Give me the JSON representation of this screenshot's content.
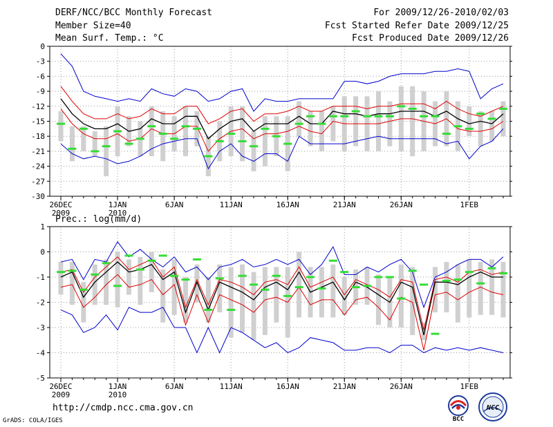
{
  "header": {
    "title": "DERF/NCC/BCC Monthly Forecast",
    "member_size": "Member Size=40",
    "variable": "Mean Surf. Temp.: °C",
    "period": "For 2009/12/26-2010/02/03",
    "started": "Fcst Started Refer Date 2009/12/25",
    "produced": "Fcst Produced Date 2009/12/26"
  },
  "footer": {
    "url": "http://cmdp.ncc.cma.gov.cn",
    "credit": "GrADS: COLA/IGES",
    "logo_bcc": "BCC",
    "logo_ncc": "NCC"
  },
  "colors": {
    "max_min": "#0000cc",
    "spread": "#dd0000",
    "mean": "#000000",
    "box": "#d0d0d0",
    "observed": "#33dd33",
    "grid": "#999999"
  },
  "chart_data": [
    {
      "type": "line",
      "title": "Mean Surf. Temp.: °C",
      "ylabel": "°C",
      "ylim": [
        -30,
        0
      ],
      "yticks": [
        0,
        -3,
        -6,
        -9,
        -12,
        -15,
        -18,
        -21,
        -24,
        -27,
        -30
      ],
      "xlim": [
        0,
        40
      ],
      "xticks": [
        {
          "day": 1,
          "label": "26DEC",
          "sub": "2009"
        },
        {
          "day": 6,
          "label": "1JAN",
          "sub": "2010"
        },
        {
          "day": 11,
          "label": "6JAN",
          "sub": ""
        },
        {
          "day": 16,
          "label": "11JAN",
          "sub": ""
        },
        {
          "day": 21,
          "label": "16JAN",
          "sub": ""
        },
        {
          "day": 26,
          "label": "21JAN",
          "sub": ""
        },
        {
          "day": 31,
          "label": "26JAN",
          "sub": ""
        },
        {
          "day": 37,
          "label": "1FEB",
          "sub": ""
        }
      ],
      "x": [
        1,
        2,
        3,
        4,
        5,
        6,
        7,
        8,
        9,
        10,
        11,
        12,
        13,
        14,
        15,
        16,
        17,
        18,
        19,
        20,
        21,
        22,
        23,
        24,
        25,
        26,
        27,
        28,
        29,
        30,
        31,
        32,
        33,
        34,
        35,
        36,
        37,
        38,
        39,
        40
      ],
      "series": [
        {
          "name": "max",
          "values": [
            -1.5,
            -4,
            -9,
            -10,
            -10.5,
            -11,
            -10.5,
            -11,
            -8.5,
            -9.5,
            -10,
            -8.5,
            -9,
            -11,
            -10.5,
            -9,
            -8.5,
            -13,
            -10.5,
            -11,
            -11,
            -10.5,
            -10.5,
            -10.5,
            -10.5,
            -7,
            -7,
            -7.5,
            -7,
            -6,
            -5.5,
            -5.5,
            -5.5,
            -5,
            -5,
            -4.5,
            -5,
            -10.5,
            -8.5,
            -7.5
          ]
        },
        {
          "name": "upper",
          "values": [
            -8,
            -11,
            -13.5,
            -14.5,
            -14.5,
            -13.5,
            -14.5,
            -14,
            -12.5,
            -13.5,
            -13.5,
            -12,
            -12,
            -15.5,
            -14.5,
            -13,
            -12.5,
            -15,
            -13.5,
            -13.5,
            -13,
            -12,
            -13,
            -13,
            -12,
            -12,
            -12,
            -12.5,
            -12,
            -12,
            -11.5,
            -11.5,
            -11.5,
            -12.5,
            -11,
            -12.5,
            -13.5,
            -14,
            -13,
            -12
          ]
        },
        {
          "name": "mean",
          "values": [
            -10.5,
            -13.5,
            -15.5,
            -16.5,
            -16.5,
            -15.5,
            -17,
            -16.5,
            -14.5,
            -15.5,
            -15.5,
            -14,
            -14,
            -18.5,
            -16.5,
            -15,
            -14.5,
            -17,
            -15.5,
            -15.5,
            -15.5,
            -14,
            -15.5,
            -15.5,
            -13,
            -13.5,
            -13.5,
            -14,
            -13.5,
            -13.5,
            -13,
            -13,
            -13,
            -14,
            -13,
            -14.5,
            -15.5,
            -15,
            -15.5,
            -13.5
          ]
        },
        {
          "name": "lower",
          "values": [
            -12.5,
            -15.5,
            -17.5,
            -18.5,
            -18.5,
            -17.5,
            -19,
            -18.5,
            -16.5,
            -17.5,
            -17.5,
            -16,
            -16,
            -21,
            -18.5,
            -17,
            -16.5,
            -18.5,
            -17.5,
            -17.5,
            -17,
            -16,
            -17,
            -17.5,
            -15,
            -15.5,
            -15.5,
            -15.5,
            -15.5,
            -15,
            -14.5,
            -14.5,
            -15,
            -15.5,
            -14.5,
            -16.5,
            -17,
            -17,
            -16.5,
            -15
          ]
        },
        {
          "name": "min",
          "values": [
            -19.5,
            -21.5,
            -22.5,
            -22,
            -22.5,
            -23.5,
            -23,
            -22,
            -20.5,
            -19.5,
            -19,
            -18.5,
            -18.5,
            -24.5,
            -21,
            -19.5,
            -22,
            -23,
            -21.5,
            -21.5,
            -23,
            -18,
            -19.5,
            -19.5,
            -19.5,
            -19.5,
            -19,
            -18.5,
            -18,
            -18.5,
            -18.5,
            -18.5,
            -18.5,
            -18.5,
            -19.5,
            -19,
            -22.5,
            -20,
            -19,
            -16.5
          ]
        },
        {
          "name": "box_top",
          "values": [
            -13,
            -16,
            -16,
            -17,
            -16,
            -12,
            -14,
            -15,
            -12,
            -13,
            -14,
            -12,
            -13,
            -18,
            -15,
            -12,
            -12,
            -17,
            -14,
            -14,
            -14,
            -11,
            -13,
            -13,
            -12,
            -10,
            -10,
            -10,
            -9,
            -11,
            -8,
            -8,
            -9,
            -11,
            -9,
            -11,
            -12,
            -13,
            -13,
            -11
          ]
        },
        {
          "name": "box_bottom",
          "values": [
            -19,
            -23,
            -21,
            -22,
            -26,
            -22,
            -20,
            -22,
            -22,
            -23,
            -21,
            -22,
            -20,
            -26,
            -23,
            -22,
            -23,
            -25,
            -24,
            -22,
            -25,
            -18,
            -20,
            -21,
            -19,
            -21,
            -20,
            -21,
            -21,
            -20,
            -21,
            -22,
            -21,
            -20,
            -20,
            -21,
            -18,
            -20,
            -19,
            -18
          ]
        },
        {
          "name": "observed",
          "values": [
            -15.5,
            -20.5,
            -16.5,
            -21,
            -20,
            -17,
            -19.5,
            -18.5,
            -16,
            -17.5,
            -18.5,
            -16,
            -16.5,
            -22,
            -19,
            -17.5,
            -19,
            -20,
            -16.5,
            -18,
            -19.5,
            -15.5,
            -14,
            -15.5,
            -14,
            -14,
            -13,
            -14,
            -14,
            -14,
            -12,
            -12.5,
            -14,
            -14,
            -17.5,
            -16,
            -16.5,
            -13.5,
            -14.5,
            -12.5
          ]
        }
      ]
    },
    {
      "type": "line",
      "title": "Prec.: log(mm/d)",
      "ylabel": "log(mm/d)",
      "ylim": [
        -5,
        1
      ],
      "yticks": [
        1,
        0,
        -1,
        -2,
        -3,
        -4,
        -5
      ],
      "xlim": [
        0,
        40
      ],
      "xticks": [
        {
          "day": 1,
          "label": "26DEC",
          "sub": "2009"
        },
        {
          "day": 6,
          "label": "1JAN",
          "sub": "2010"
        },
        {
          "day": 11,
          "label": "6JAN",
          "sub": ""
        },
        {
          "day": 16,
          "label": "11JAN",
          "sub": ""
        },
        {
          "day": 21,
          "label": "16JAN",
          "sub": ""
        },
        {
          "day": 26,
          "label": "21JAN",
          "sub": ""
        },
        {
          "day": 31,
          "label": "26JAN",
          "sub": ""
        },
        {
          "day": 37,
          "label": "1FEB",
          "sub": ""
        }
      ],
      "x": [
        1,
        2,
        3,
        4,
        5,
        6,
        7,
        8,
        9,
        10,
        11,
        12,
        13,
        14,
        15,
        16,
        17,
        18,
        19,
        20,
        21,
        22,
        23,
        24,
        25,
        26,
        27,
        28,
        29,
        30,
        31,
        32,
        33,
        34,
        35,
        36,
        37,
        38,
        39,
        40
      ],
      "series": [
        {
          "name": "max",
          "values": [
            -0.4,
            -0.3,
            -1.1,
            -0.3,
            -0.4,
            0.4,
            -0.2,
            0.1,
            -0.3,
            -0.6,
            -0.2,
            -0.8,
            -0.6,
            -1.1,
            -0.6,
            -0.5,
            -0.3,
            -0.6,
            -0.5,
            -0.3,
            -0.5,
            -0.3,
            -0.9,
            -0.5,
            0.2,
            -0.9,
            -0.9,
            -0.6,
            -0.8,
            -0.5,
            -0.3,
            -0.8,
            -2.2,
            -1.0,
            -0.8,
            -0.5,
            -0.3,
            -0.3,
            -0.6,
            -0.2
          ]
        },
        {
          "name": "upper",
          "values": [
            -0.8,
            -0.7,
            -1.6,
            -1.0,
            -0.6,
            -0.2,
            -0.7,
            -0.5,
            -0.3,
            -1.0,
            -0.6,
            -2.2,
            -1.1,
            -2.1,
            -1.1,
            -1.2,
            -1.4,
            -1.7,
            -1.2,
            -1.1,
            -1.3,
            -0.6,
            -1.4,
            -1.2,
            -1.0,
            -1.7,
            -1.1,
            -1.3,
            -1.5,
            -1.8,
            -1.1,
            -1.2,
            -3.1,
            -1.1,
            -1.0,
            -1.2,
            -0.8,
            -0.7,
            -0.9,
            -0.8
          ]
        },
        {
          "name": "mean",
          "values": [
            -1.0,
            -0.8,
            -1.8,
            -1.2,
            -0.8,
            -0.4,
            -0.8,
            -0.7,
            -0.5,
            -1.1,
            -0.8,
            -2.4,
            -1.2,
            -2.3,
            -1.2,
            -1.4,
            -1.6,
            -1.9,
            -1.4,
            -1.2,
            -1.5,
            -0.8,
            -1.6,
            -1.4,
            -1.2,
            -1.9,
            -1.2,
            -1.4,
            -1.7,
            -2.0,
            -1.2,
            -1.4,
            -3.3,
            -1.2,
            -1.2,
            -1.3,
            -1.0,
            -0.8,
            -1.0,
            -1.0
          ]
        },
        {
          "name": "lower",
          "values": [
            -1.4,
            -1.3,
            -2.2,
            -1.8,
            -1.3,
            -0.9,
            -1.4,
            -1.3,
            -1.1,
            -1.7,
            -1.3,
            -2.9,
            -1.7,
            -2.8,
            -1.7,
            -1.9,
            -2.1,
            -2.4,
            -1.9,
            -1.8,
            -2.0,
            -1.4,
            -2.1,
            -1.9,
            -1.9,
            -2.5,
            -1.9,
            -1.8,
            -2.2,
            -2.7,
            -1.8,
            -2.0,
            -3.9,
            -1.7,
            -1.6,
            -1.9,
            -1.6,
            -1.4,
            -1.6,
            -1.7
          ]
        },
        {
          "name": "min",
          "values": [
            -2.3,
            -2.5,
            -3.2,
            -3.0,
            -2.5,
            -3.1,
            -2.2,
            -2.4,
            -2.4,
            -2.2,
            -3.0,
            -3.0,
            -4.0,
            -3.0,
            -4.0,
            -3.0,
            -3.2,
            -3.5,
            -3.8,
            -3.6,
            -4.0,
            -3.8,
            -3.4,
            -3.5,
            -3.6,
            -3.9,
            -3.9,
            -3.8,
            -3.8,
            -4.0,
            -3.7,
            -3.7,
            -4.0,
            -3.8,
            -3.9,
            -3.8,
            -3.9,
            -3.8,
            -3.9,
            -4.0
          ]
        },
        {
          "name": "box_top",
          "values": [
            -0.4,
            -0.4,
            -1.2,
            -0.5,
            -0.3,
            0.0,
            -0.3,
            -0.2,
            0.0,
            -0.7,
            -0.3,
            -1.0,
            -0.5,
            -1.0,
            -0.5,
            -0.6,
            -0.5,
            -0.8,
            -0.6,
            -0.6,
            -0.6,
            0.0,
            -0.6,
            -0.6,
            -0.5,
            -1.0,
            -0.7,
            -0.6,
            -0.9,
            -1.0,
            -0.5,
            -0.6,
            -2.8,
            -0.6,
            -0.4,
            -0.5,
            -0.3,
            -0.4,
            -0.3,
            -0.4
          ]
        },
        {
          "name": "box_bottom",
          "values": [
            -1.7,
            -2.1,
            -2.8,
            -2.1,
            -2.1,
            -2.2,
            -1.7,
            -2.1,
            -1.6,
            -2.8,
            -2.5,
            -2.8,
            -2.0,
            -2.8,
            -2.4,
            -3.4,
            -3.2,
            -3.5,
            -3.3,
            -2.8,
            -3.4,
            -2.6,
            -2.6,
            -2.6,
            -2.6,
            -2.5,
            -2.1,
            -2.1,
            -2.9,
            -3.0,
            -3.0,
            -3.3,
            -3.5,
            -2.4,
            -2.4,
            -2.8,
            -2.6,
            -2.5,
            -2.5,
            -2.6
          ]
        },
        {
          "name": "observed",
          "values": [
            -0.8,
            -0.75,
            -1.5,
            -0.9,
            -0.45,
            -1.35,
            -0.15,
            -0.7,
            -0.35,
            -0.15,
            -0.95,
            -1.1,
            -0.3,
            -2.3,
            -1.05,
            -2.3,
            -0.95,
            -1.3,
            -1.5,
            -0.95,
            -1.75,
            -1.4,
            -1.0,
            -1.45,
            -0.35,
            -0.8,
            -1.4,
            -1.35,
            -1.0,
            -1.0,
            -1.85,
            -0.75,
            -1.3,
            -3.25,
            -1.15,
            -1.1,
            -0.8,
            -1.25,
            -0.65,
            -0.85
          ]
        }
      ]
    }
  ]
}
